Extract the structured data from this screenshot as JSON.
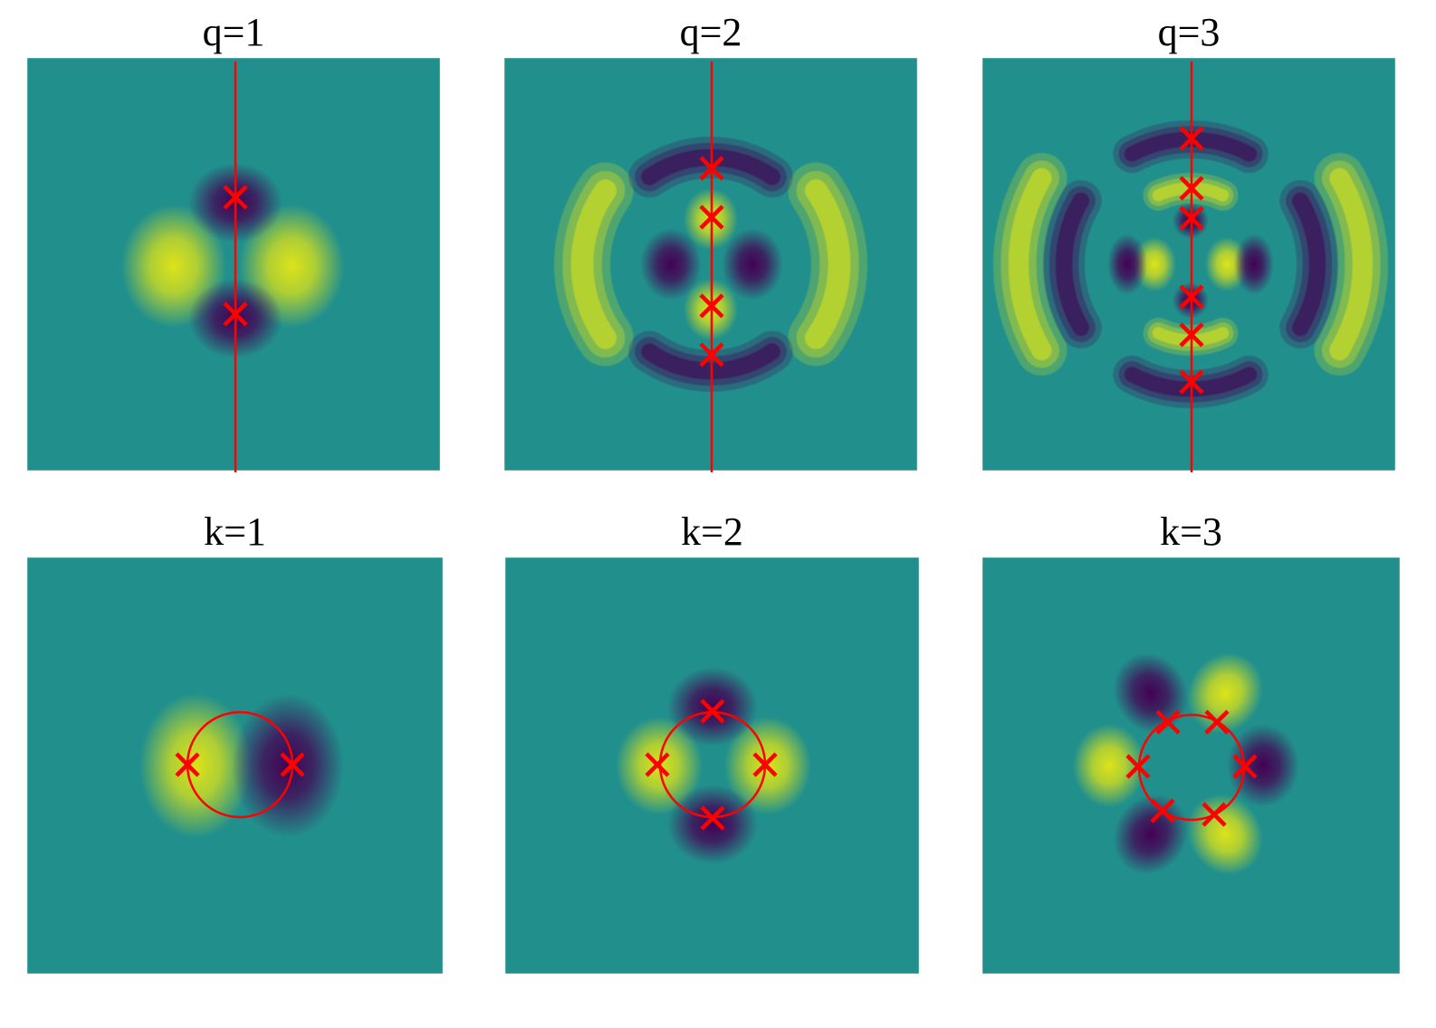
{
  "colors": {
    "background": "#21908c",
    "positive": "#dde318",
    "negative": "#440154",
    "marker": "#ff0000"
  },
  "panels": [
    {
      "title": "q=1",
      "row": "q",
      "order": 1
    },
    {
      "title": "q=2",
      "row": "q",
      "order": 2
    },
    {
      "title": "q=3",
      "row": "q",
      "order": 3
    },
    {
      "title": "k=1",
      "row": "k",
      "order": 1
    },
    {
      "title": "k=2",
      "row": "k",
      "order": 2
    },
    {
      "title": "k=3",
      "row": "k",
      "order": 3
    }
  ]
}
